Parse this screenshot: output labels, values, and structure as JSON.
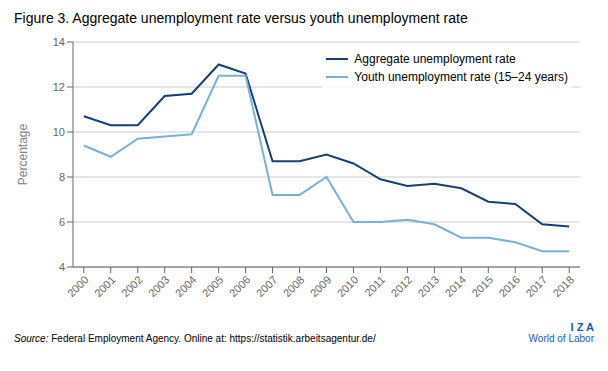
{
  "chart_data": {
    "type": "line",
    "title": "Figure 3. Aggregate unemployment rate versus youth unemployment rate",
    "y_label": "Percentage",
    "x": [
      2000,
      2001,
      2002,
      2003,
      2004,
      2005,
      2006,
      2007,
      2008,
      2009,
      2010,
      2011,
      2012,
      2013,
      2014,
      2015,
      2016,
      2017,
      2018
    ],
    "series": [
      {
        "name": "Aggregate unemployment rate",
        "color": "#1a3f6f",
        "values": [
          10.7,
          10.3,
          10.3,
          11.6,
          11.7,
          13.0,
          12.6,
          8.7,
          8.7,
          9.0,
          8.6,
          7.9,
          7.6,
          7.7,
          7.5,
          6.9,
          6.8,
          5.9,
          5.8
        ]
      },
      {
        "name": "Youth unemployment rate (15–24 years)",
        "color": "#7ab0d4",
        "values": [
          9.4,
          8.9,
          9.7,
          9.8,
          9.9,
          12.5,
          12.5,
          7.2,
          7.2,
          8.0,
          6.0,
          6.0,
          6.1,
          5.9,
          5.3,
          5.3,
          5.1,
          4.7,
          4.7
        ]
      }
    ],
    "xlim": [
      1999.6,
      2018.4
    ],
    "xticks": [
      2000,
      2001,
      2002,
      2003,
      2004,
      2005,
      2006,
      2007,
      2008,
      2009,
      2010,
      2011,
      2012,
      2013,
      2014,
      2015,
      2016,
      2017,
      2018
    ],
    "ylim": [
      4,
      14
    ],
    "yticks": [
      4,
      6,
      8,
      10,
      12,
      14
    ],
    "grid": "y",
    "legend": "upper right",
    "annotations": [
      "Source: Federal Employment Agency. Online at: https://statistik.arbeitsagentur.de/",
      "I Z A",
      "World of Labor"
    ]
  }
}
